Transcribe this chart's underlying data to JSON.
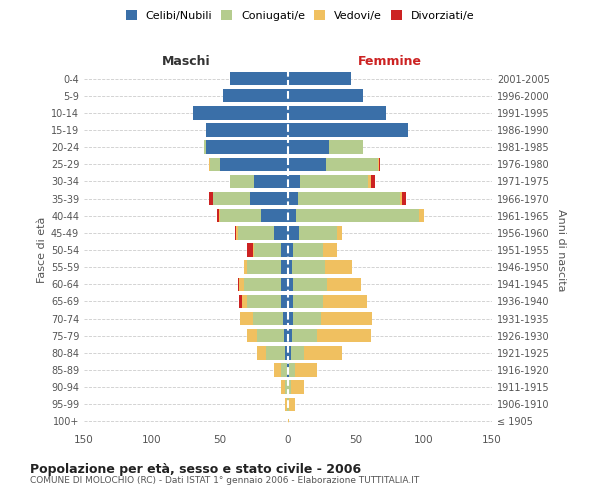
{
  "age_groups": [
    "100+",
    "95-99",
    "90-94",
    "85-89",
    "80-84",
    "75-79",
    "70-74",
    "65-69",
    "60-64",
    "55-59",
    "50-54",
    "45-49",
    "40-44",
    "35-39",
    "30-34",
    "25-29",
    "20-24",
    "15-19",
    "10-14",
    "5-9",
    "0-4"
  ],
  "birth_years": [
    "≤ 1905",
    "1906-1910",
    "1911-1915",
    "1916-1920",
    "1921-1925",
    "1926-1930",
    "1931-1935",
    "1936-1940",
    "1941-1945",
    "1946-1950",
    "1951-1955",
    "1956-1960",
    "1961-1965",
    "1966-1970",
    "1971-1975",
    "1976-1980",
    "1981-1985",
    "1986-1990",
    "1991-1995",
    "1996-2000",
    "2001-2005"
  ],
  "maschi": {
    "celibi": [
      0,
      0,
      0,
      1,
      2,
      3,
      4,
      5,
      5,
      5,
      5,
      10,
      20,
      28,
      25,
      50,
      60,
      60,
      70,
      48,
      43
    ],
    "coniugati": [
      0,
      1,
      2,
      4,
      14,
      20,
      22,
      25,
      27,
      25,
      20,
      27,
      30,
      27,
      18,
      7,
      2,
      0,
      0,
      0,
      0
    ],
    "vedovi": [
      0,
      1,
      3,
      5,
      7,
      7,
      9,
      4,
      4,
      2,
      1,
      1,
      1,
      0,
      0,
      1,
      0,
      0,
      0,
      0,
      0
    ],
    "divorziati": [
      0,
      0,
      0,
      0,
      0,
      0,
      0,
      2,
      1,
      0,
      4,
      1,
      1,
      3,
      0,
      0,
      0,
      0,
      0,
      0,
      0
    ]
  },
  "femmine": {
    "nubili": [
      0,
      0,
      0,
      1,
      2,
      3,
      4,
      4,
      4,
      3,
      4,
      8,
      6,
      7,
      9,
      28,
      30,
      88,
      72,
      55,
      46
    ],
    "coniugate": [
      0,
      1,
      2,
      4,
      10,
      18,
      20,
      22,
      25,
      24,
      22,
      28,
      90,
      75,
      50,
      38,
      25,
      0,
      0,
      0,
      0
    ],
    "vedove": [
      1,
      4,
      10,
      16,
      28,
      40,
      38,
      32,
      25,
      20,
      10,
      4,
      4,
      2,
      2,
      1,
      0,
      0,
      0,
      0,
      0
    ],
    "divorziate": [
      0,
      0,
      0,
      0,
      0,
      0,
      0,
      0,
      0,
      0,
      0,
      0,
      0,
      3,
      3,
      1,
      0,
      0,
      0,
      0,
      0
    ]
  },
  "colors": {
    "celibi_nubili": "#3a6fa8",
    "coniugati": "#b5cc8e",
    "vedovi": "#f0c060",
    "divorziati": "#cc2222"
  },
  "title": "Popolazione per età, sesso e stato civile - 2006",
  "subtitle": "COMUNE DI MOLOCHIO (RC) - Dati ISTAT 1° gennaio 2006 - Elaborazione TUTTITALIA.IT",
  "header_left": "Maschi",
  "header_right": "Femmine",
  "ylabel_left": "Fasce di età",
  "ylabel_right": "Anni di nascita",
  "xlim": 150,
  "background_color": "#ffffff",
  "grid_color": "#cccccc",
  "header_right_color": "#cc2222",
  "header_left_color": "#333333"
}
